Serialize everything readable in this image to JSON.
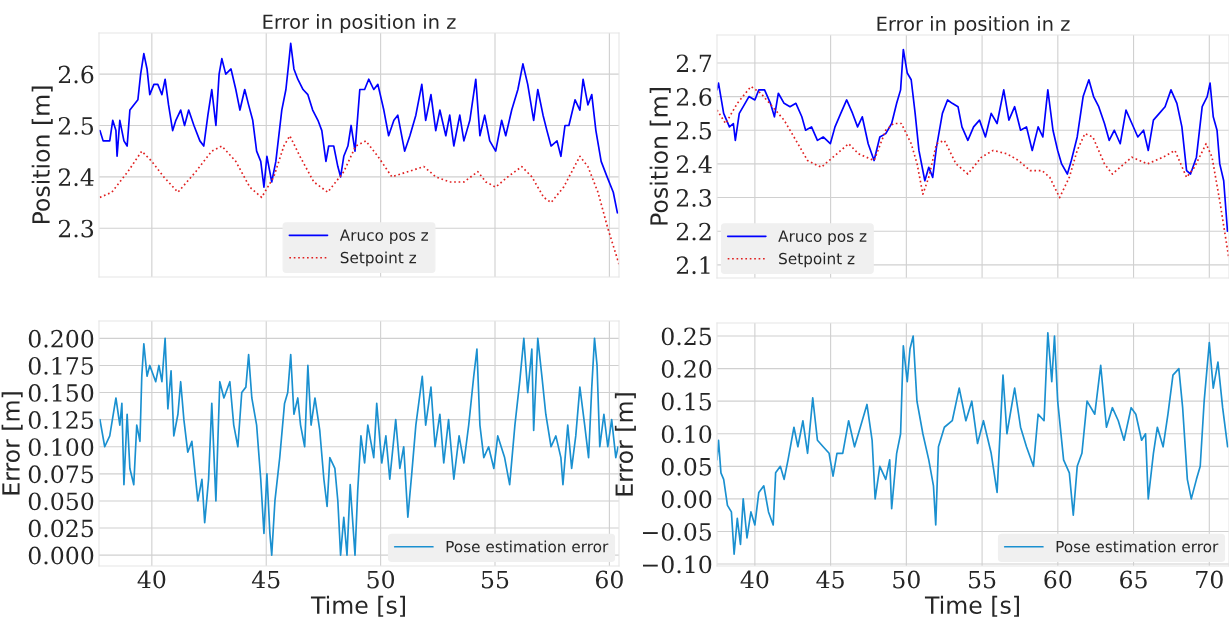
{
  "chart_data": [
    {
      "type": "line",
      "title": "Error in position in z",
      "ylabel": "Position [m]",
      "xlim": [
        37.69,
        60.42
      ],
      "ylim": [
        2.205,
        2.68
      ],
      "xticks": [
        40,
        45,
        50,
        55,
        60
      ],
      "yticks": [
        2.3,
        2.4,
        2.5,
        2.6
      ],
      "tick_labels": "y",
      "grid": true,
      "legend": "bottom",
      "series": [
        {
          "name": "Aruco pos z",
          "color": "#0000ff",
          "line_style": "solid",
          "x": [
            37.73,
            37.87,
            38.16,
            38.29,
            38.43,
            38.48,
            38.6,
            38.78,
            38.92,
            39.04,
            39.21,
            39.39,
            39.51,
            39.65,
            39.79,
            39.91,
            40.09,
            40.26,
            40.44,
            40.58,
            40.73,
            40.91,
            41.05,
            41.26,
            41.43,
            41.61,
            41.84,
            42.1,
            42.27,
            42.45,
            42.62,
            42.8,
            42.94,
            43.06,
            43.23,
            43.46,
            43.67,
            43.85,
            44.06,
            44.23,
            44.41,
            44.58,
            44.76,
            44.9,
            45.03,
            45.24,
            45.42,
            45.68,
            45.86,
            45.98,
            46.07,
            46.21,
            46.38,
            46.61,
            46.82,
            47.03,
            47.26,
            47.43,
            47.61,
            47.73,
            47.95,
            48.13,
            48.25,
            48.39,
            48.57,
            48.71,
            48.88,
            49.09,
            49.3,
            49.48,
            49.7,
            49.88,
            50.14,
            50.35,
            50.58,
            50.75,
            51.05,
            51.28,
            51.54,
            51.8,
            51.97,
            52.2,
            52.41,
            52.59,
            52.85,
            53.02,
            53.2,
            53.46,
            53.64,
            53.9,
            54.16,
            54.34,
            54.55,
            54.77,
            55.03,
            55.29,
            55.47,
            55.73,
            56.0,
            56.22,
            56.43,
            56.69,
            56.87,
            57.1,
            57.27,
            57.45,
            57.71,
            57.88,
            58.06,
            58.23,
            58.5,
            58.71,
            58.85,
            59.06,
            59.23,
            59.41,
            59.64,
            59.9,
            60.17,
            60.35
          ],
          "values": [
            2.49,
            2.47,
            2.47,
            2.51,
            2.49,
            2.44,
            2.51,
            2.47,
            2.46,
            2.53,
            2.54,
            2.55,
            2.6,
            2.64,
            2.61,
            2.56,
            2.58,
            2.58,
            2.56,
            2.59,
            2.54,
            2.49,
            2.51,
            2.53,
            2.5,
            2.53,
            2.5,
            2.47,
            2.46,
            2.52,
            2.57,
            2.5,
            2.6,
            2.63,
            2.6,
            2.61,
            2.57,
            2.53,
            2.57,
            2.54,
            2.51,
            2.45,
            2.43,
            2.38,
            2.44,
            2.39,
            2.43,
            2.53,
            2.57,
            2.62,
            2.66,
            2.61,
            2.59,
            2.57,
            2.56,
            2.53,
            2.51,
            2.49,
            2.43,
            2.46,
            2.46,
            2.42,
            2.4,
            2.44,
            2.46,
            2.5,
            2.45,
            2.57,
            2.57,
            2.59,
            2.57,
            2.58,
            2.53,
            2.48,
            2.51,
            2.52,
            2.45,
            2.48,
            2.52,
            2.58,
            2.51,
            2.56,
            2.49,
            2.53,
            2.48,
            2.52,
            2.46,
            2.52,
            2.47,
            2.51,
            2.59,
            2.48,
            2.52,
            2.47,
            2.45,
            2.51,
            2.48,
            2.53,
            2.57,
            2.62,
            2.58,
            2.51,
            2.57,
            2.52,
            2.49,
            2.46,
            2.47,
            2.44,
            2.5,
            2.5,
            2.55,
            2.53,
            2.59,
            2.54,
            2.56,
            2.49,
            2.43,
            2.4,
            2.37,
            2.33
          ]
        },
        {
          "name": "Setpoint z",
          "color": "#e02020",
          "line_style": "dotted",
          "x": [
            37.73,
            38.25,
            38.95,
            39.56,
            40.0,
            40.52,
            41.14,
            41.92,
            42.62,
            43.06,
            43.67,
            44.28,
            44.8,
            45.33,
            45.77,
            46.03,
            46.47,
            47.08,
            47.69,
            48.39,
            48.91,
            49.35,
            49.88,
            50.49,
            51.19,
            51.89,
            52.41,
            53.02,
            53.64,
            54.25,
            54.6,
            55.03,
            55.56,
            56.17,
            56.61,
            57.13,
            57.45,
            58.0,
            58.71,
            59.06,
            59.5,
            59.93,
            60.42
          ],
          "values": [
            2.36,
            2.37,
            2.41,
            2.45,
            2.43,
            2.4,
            2.37,
            2.41,
            2.45,
            2.46,
            2.43,
            2.38,
            2.36,
            2.4,
            2.46,
            2.48,
            2.44,
            2.39,
            2.37,
            2.41,
            2.46,
            2.47,
            2.44,
            2.4,
            2.41,
            2.42,
            2.4,
            2.39,
            2.39,
            2.41,
            2.39,
            2.38,
            2.4,
            2.42,
            2.4,
            2.36,
            2.35,
            2.38,
            2.44,
            2.42,
            2.37,
            2.3,
            2.23
          ]
        }
      ]
    },
    {
      "type": "line",
      "title": "Error in position in z",
      "ylabel": "Position [m]",
      "xlim": [
        37.5,
        71.3
      ],
      "ylim": [
        2.061,
        2.783
      ],
      "xticks": [
        40,
        45,
        50,
        55,
        60,
        65,
        70
      ],
      "yticks": [
        2.1,
        2.2,
        2.3,
        2.4,
        2.5,
        2.6,
        2.7
      ],
      "tick_labels": "y",
      "grid": true,
      "legend": "bottom left",
      "series": [
        {
          "name": "Aruco pos z",
          "color": "#0000ff",
          "line_style": "solid",
          "x": [
            37.5,
            37.6,
            37.94,
            38.32,
            38.58,
            38.71,
            38.97,
            39.23,
            39.61,
            40.0,
            40.26,
            40.64,
            41.03,
            41.29,
            41.55,
            41.93,
            42.32,
            42.71,
            43.1,
            43.35,
            43.74,
            44.13,
            44.51,
            44.98,
            45.29,
            45.67,
            46.06,
            46.45,
            46.78,
            47.09,
            47.48,
            47.87,
            48.25,
            48.64,
            49.03,
            49.36,
            49.62,
            49.8,
            50.06,
            50.32,
            50.58,
            50.83,
            51.22,
            51.48,
            51.74,
            51.99,
            52.38,
            52.72,
            53.03,
            53.41,
            53.67,
            54.06,
            54.44,
            54.83,
            55.22,
            55.6,
            55.99,
            56.43,
            56.77,
            57.15,
            57.54,
            57.93,
            58.31,
            58.7,
            59.01,
            59.34,
            59.68,
            59.99,
            60.25,
            60.63,
            60.89,
            61.28,
            61.67,
            62.05,
            62.36,
            62.7,
            63.08,
            63.39,
            63.73,
            64.12,
            64.5,
            64.89,
            65.28,
            65.66,
            65.97,
            66.31,
            66.7,
            67.08,
            67.47,
            67.86,
            68.19,
            68.5,
            68.76,
            69.15,
            69.53,
            69.86,
            70.05,
            70.26,
            70.51,
            70.69,
            70.95,
            71.2
          ],
          "values": [
            2.62,
            2.64,
            2.55,
            2.51,
            2.52,
            2.47,
            2.55,
            2.57,
            2.6,
            2.59,
            2.62,
            2.62,
            2.58,
            2.54,
            2.61,
            2.58,
            2.57,
            2.58,
            2.54,
            2.5,
            2.51,
            2.47,
            2.48,
            2.46,
            2.51,
            2.55,
            2.59,
            2.55,
            2.51,
            2.54,
            2.46,
            2.41,
            2.48,
            2.49,
            2.52,
            2.58,
            2.62,
            2.74,
            2.67,
            2.65,
            2.55,
            2.44,
            2.35,
            2.39,
            2.36,
            2.45,
            2.55,
            2.59,
            2.58,
            2.57,
            2.51,
            2.47,
            2.51,
            2.53,
            2.48,
            2.55,
            2.52,
            2.62,
            2.53,
            2.57,
            2.5,
            2.51,
            2.44,
            2.51,
            2.48,
            2.62,
            2.5,
            2.44,
            2.4,
            2.37,
            2.41,
            2.48,
            2.6,
            2.65,
            2.6,
            2.57,
            2.52,
            2.47,
            2.5,
            2.46,
            2.56,
            2.52,
            2.48,
            2.5,
            2.44,
            2.53,
            2.55,
            2.57,
            2.62,
            2.58,
            2.51,
            2.38,
            2.37,
            2.42,
            2.57,
            2.6,
            2.64,
            2.54,
            2.5,
            2.4,
            2.35,
            2.2
          ]
        },
        {
          "name": "Setpoint z",
          "color": "#e02020",
          "line_style": "dotted",
          "x": [
            37.5,
            38.07,
            38.84,
            39.74,
            40.39,
            41.16,
            41.93,
            42.71,
            43.48,
            44.38,
            45.16,
            46.19,
            46.84,
            47.87,
            48.64,
            49.16,
            49.67,
            50.32,
            50.71,
            51.09,
            51.48,
            51.99,
            52.51,
            53.28,
            54.06,
            54.96,
            55.73,
            56.64,
            57.41,
            58.18,
            58.96,
            59.47,
            60.12,
            60.76,
            61.28,
            61.79,
            62.31,
            63.08,
            63.6,
            64.37,
            64.89,
            65.92,
            66.95,
            67.73,
            68.5,
            69.02,
            69.79,
            70.18,
            70.69,
            71.29
          ],
          "values": [
            2.56,
            2.52,
            2.58,
            2.63,
            2.61,
            2.57,
            2.53,
            2.47,
            2.41,
            2.39,
            2.42,
            2.46,
            2.43,
            2.41,
            2.5,
            2.52,
            2.52,
            2.46,
            2.4,
            2.31,
            2.36,
            2.46,
            2.47,
            2.4,
            2.37,
            2.42,
            2.44,
            2.43,
            2.41,
            2.38,
            2.38,
            2.36,
            2.3,
            2.36,
            2.44,
            2.49,
            2.48,
            2.4,
            2.37,
            2.4,
            2.42,
            2.4,
            2.42,
            2.44,
            2.36,
            2.39,
            2.46,
            2.42,
            2.29,
            2.12
          ]
        }
      ]
    },
    {
      "type": "line",
      "xlabel": "Time [s]",
      "ylabel": "Error [m]",
      "xlim": [
        37.69,
        60.42
      ],
      "ylim": [
        -0.01,
        0.216
      ],
      "xticks": [
        40,
        45,
        50,
        55,
        60
      ],
      "yticks": [
        {
          "value": 0.0,
          "label": "0.000"
        },
        {
          "value": 0.025,
          "label": "0.025"
        },
        {
          "value": 0.05,
          "label": "0.050"
        },
        {
          "value": 0.075,
          "label": "0.075"
        },
        {
          "value": 0.1,
          "label": "0.100"
        },
        {
          "value": 0.125,
          "label": "0.125"
        },
        {
          "value": 0.15,
          "label": "0.150"
        },
        {
          "value": 0.175,
          "label": "0.175"
        },
        {
          "value": 0.2,
          "label": "0.200"
        }
      ],
      "grid": true,
      "legend": "bottom right",
      "series": [
        {
          "name": "Pose estimation error",
          "color": "#1a90d0",
          "line_style": "solid",
          "x": [
            37.73,
            37.94,
            38.16,
            38.43,
            38.6,
            38.69,
            38.78,
            38.92,
            39.04,
            39.21,
            39.34,
            39.48,
            39.56,
            39.65,
            39.79,
            39.91,
            40.17,
            40.31,
            40.44,
            40.58,
            40.7,
            40.84,
            40.96,
            41.14,
            41.26,
            41.4,
            41.57,
            41.75,
            42.01,
            42.19,
            42.31,
            42.48,
            42.62,
            42.8,
            42.97,
            43.15,
            43.41,
            43.58,
            43.76,
            43.93,
            44.11,
            44.23,
            44.37,
            44.58,
            44.76,
            44.9,
            45.03,
            45.16,
            45.24,
            45.38,
            45.59,
            45.8,
            45.94,
            46.07,
            46.21,
            46.38,
            46.5,
            46.68,
            46.82,
            46.96,
            47.13,
            47.34,
            47.52,
            47.66,
            47.78,
            48.0,
            48.13,
            48.25,
            48.39,
            48.53,
            48.67,
            48.88,
            49.0,
            49.14,
            49.3,
            49.44,
            49.7,
            49.83,
            50.05,
            50.23,
            50.4,
            50.66,
            50.84,
            51.01,
            51.19,
            51.36,
            51.54,
            51.82,
            51.97,
            52.2,
            52.38,
            52.59,
            52.76,
            52.97,
            53.2,
            53.43,
            53.64,
            53.85,
            54.07,
            54.21,
            54.34,
            54.51,
            54.72,
            54.95,
            55.12,
            55.42,
            55.64,
            55.87,
            56.08,
            56.26,
            56.43,
            56.61,
            56.69,
            56.87,
            57.05,
            57.22,
            57.45,
            57.66,
            57.88,
            57.97,
            58.18,
            58.35,
            58.53,
            58.71,
            58.92,
            59.09,
            59.23,
            59.35,
            59.46,
            59.58,
            59.76,
            59.93,
            60.1,
            60.28,
            60.38
          ],
          "values": [
            0.125,
            0.1,
            0.11,
            0.145,
            0.12,
            0.14,
            0.065,
            0.13,
            0.08,
            0.065,
            0.12,
            0.105,
            0.165,
            0.195,
            0.165,
            0.175,
            0.16,
            0.175,
            0.16,
            0.2,
            0.135,
            0.17,
            0.11,
            0.13,
            0.16,
            0.125,
            0.095,
            0.105,
            0.05,
            0.07,
            0.03,
            0.07,
            0.14,
            0.05,
            0.16,
            0.145,
            0.16,
            0.12,
            0.1,
            0.15,
            0.155,
            0.185,
            0.145,
            0.12,
            0.07,
            0.02,
            0.075,
            0.02,
            0.0,
            0.05,
            0.09,
            0.14,
            0.15,
            0.185,
            0.13,
            0.145,
            0.12,
            0.1,
            0.175,
            0.12,
            0.145,
            0.115,
            0.07,
            0.045,
            0.09,
            0.08,
            0.05,
            0.0,
            0.035,
            0.0,
            0.065,
            0.0,
            0.06,
            0.11,
            0.085,
            0.12,
            0.09,
            0.14,
            0.085,
            0.11,
            0.07,
            0.125,
            0.08,
            0.1,
            0.035,
            0.075,
            0.12,
            0.165,
            0.12,
            0.155,
            0.1,
            0.13,
            0.085,
            0.125,
            0.07,
            0.11,
            0.085,
            0.12,
            0.165,
            0.19,
            0.12,
            0.09,
            0.1,
            0.08,
            0.11,
            0.09,
            0.065,
            0.12,
            0.16,
            0.2,
            0.15,
            0.19,
            0.115,
            0.2,
            0.165,
            0.13,
            0.1,
            0.11,
            0.09,
            0.065,
            0.12,
            0.08,
            0.11,
            0.155,
            0.12,
            0.09,
            0.155,
            0.2,
            0.175,
            0.1,
            0.13,
            0.1,
            0.125,
            0.09,
            0.1
          ]
        }
      ]
    },
    {
      "type": "line",
      "xlabel": "Time [s]",
      "ylabel": "Error [m]",
      "xlim": [
        37.5,
        71.3
      ],
      "ylim": [
        -0.103,
        0.27
      ],
      "xticks": [
        40,
        45,
        50,
        55,
        60,
        65,
        70
      ],
      "yticks": [
        {
          "value": -0.1,
          "label": "−0.10"
        },
        {
          "value": -0.05,
          "label": "−0.05"
        },
        {
          "value": 0.0,
          "label": "0.00"
        },
        {
          "value": 0.05,
          "label": "0.05"
        },
        {
          "value": 0.1,
          "label": "0.10"
        },
        {
          "value": 0.15,
          "label": "0.15"
        },
        {
          "value": 0.2,
          "label": "0.20"
        },
        {
          "value": 0.25,
          "label": "0.25"
        }
      ],
      "grid": true,
      "legend": "bottom right",
      "series": [
        {
          "name": "Pose estimation error",
          "color": "#1a90d0",
          "line_style": "solid",
          "x": [
            37.5,
            37.6,
            37.76,
            37.94,
            38.19,
            38.45,
            38.63,
            38.84,
            39.05,
            39.23,
            39.48,
            39.74,
            40.0,
            40.26,
            40.59,
            40.9,
            41.21,
            41.37,
            41.68,
            41.93,
            42.19,
            42.58,
            42.84,
            43.17,
            43.48,
            43.82,
            44.13,
            44.51,
            44.9,
            45.16,
            45.42,
            45.8,
            46.19,
            46.58,
            46.96,
            47.4,
            47.74,
            47.94,
            48.25,
            48.64,
            48.9,
            49.03,
            49.36,
            49.62,
            49.8,
            50.06,
            50.24,
            50.45,
            50.7,
            51.09,
            51.48,
            51.79,
            51.94,
            52.12,
            52.51,
            53.03,
            53.49,
            53.93,
            54.32,
            54.7,
            55.09,
            55.6,
            55.99,
            56.38,
            56.64,
            57.15,
            57.54,
            57.93,
            58.39,
            58.7,
            59.09,
            59.34,
            59.6,
            59.78,
            59.99,
            60.38,
            60.76,
            61.02,
            61.28,
            61.59,
            61.93,
            62.44,
            62.83,
            63.21,
            63.6,
            63.99,
            64.37,
            64.84,
            65.15,
            65.53,
            65.79,
            65.97,
            66.31,
            66.57,
            66.95,
            67.27,
            67.6,
            67.99,
            68.24,
            68.55,
            68.81,
            69.15,
            69.4,
            69.66,
            70.0,
            70.26,
            70.57,
            70.88,
            71.21
          ],
          "values": [
            0.06,
            0.09,
            0.04,
            0.03,
            -0.01,
            -0.02,
            -0.085,
            -0.03,
            -0.07,
            0.0,
            -0.06,
            -0.02,
            -0.04,
            0.01,
            0.02,
            -0.02,
            -0.04,
            0.04,
            0.05,
            0.03,
            0.06,
            0.11,
            0.08,
            0.12,
            0.07,
            0.155,
            0.09,
            0.08,
            0.07,
            0.035,
            0.07,
            0.07,
            0.12,
            0.08,
            0.11,
            0.145,
            0.09,
            0.0,
            0.05,
            0.03,
            0.06,
            -0.015,
            0.07,
            0.1,
            0.235,
            0.18,
            0.23,
            0.25,
            0.15,
            0.1,
            0.06,
            0.02,
            -0.04,
            0.08,
            0.11,
            0.12,
            0.17,
            0.12,
            0.15,
            0.085,
            0.12,
            0.07,
            0.01,
            0.19,
            0.1,
            0.17,
            0.11,
            0.08,
            0.05,
            0.13,
            0.12,
            0.255,
            0.18,
            0.25,
            0.15,
            0.06,
            0.04,
            -0.025,
            0.05,
            0.07,
            0.15,
            0.13,
            0.205,
            0.11,
            0.14,
            0.12,
            0.09,
            0.14,
            0.13,
            0.09,
            0.1,
            0.0,
            0.07,
            0.11,
            0.08,
            0.13,
            0.19,
            0.2,
            0.14,
            0.03,
            0.0,
            0.03,
            0.05,
            0.15,
            0.24,
            0.17,
            0.21,
            0.14,
            0.08
          ]
        }
      ]
    }
  ]
}
